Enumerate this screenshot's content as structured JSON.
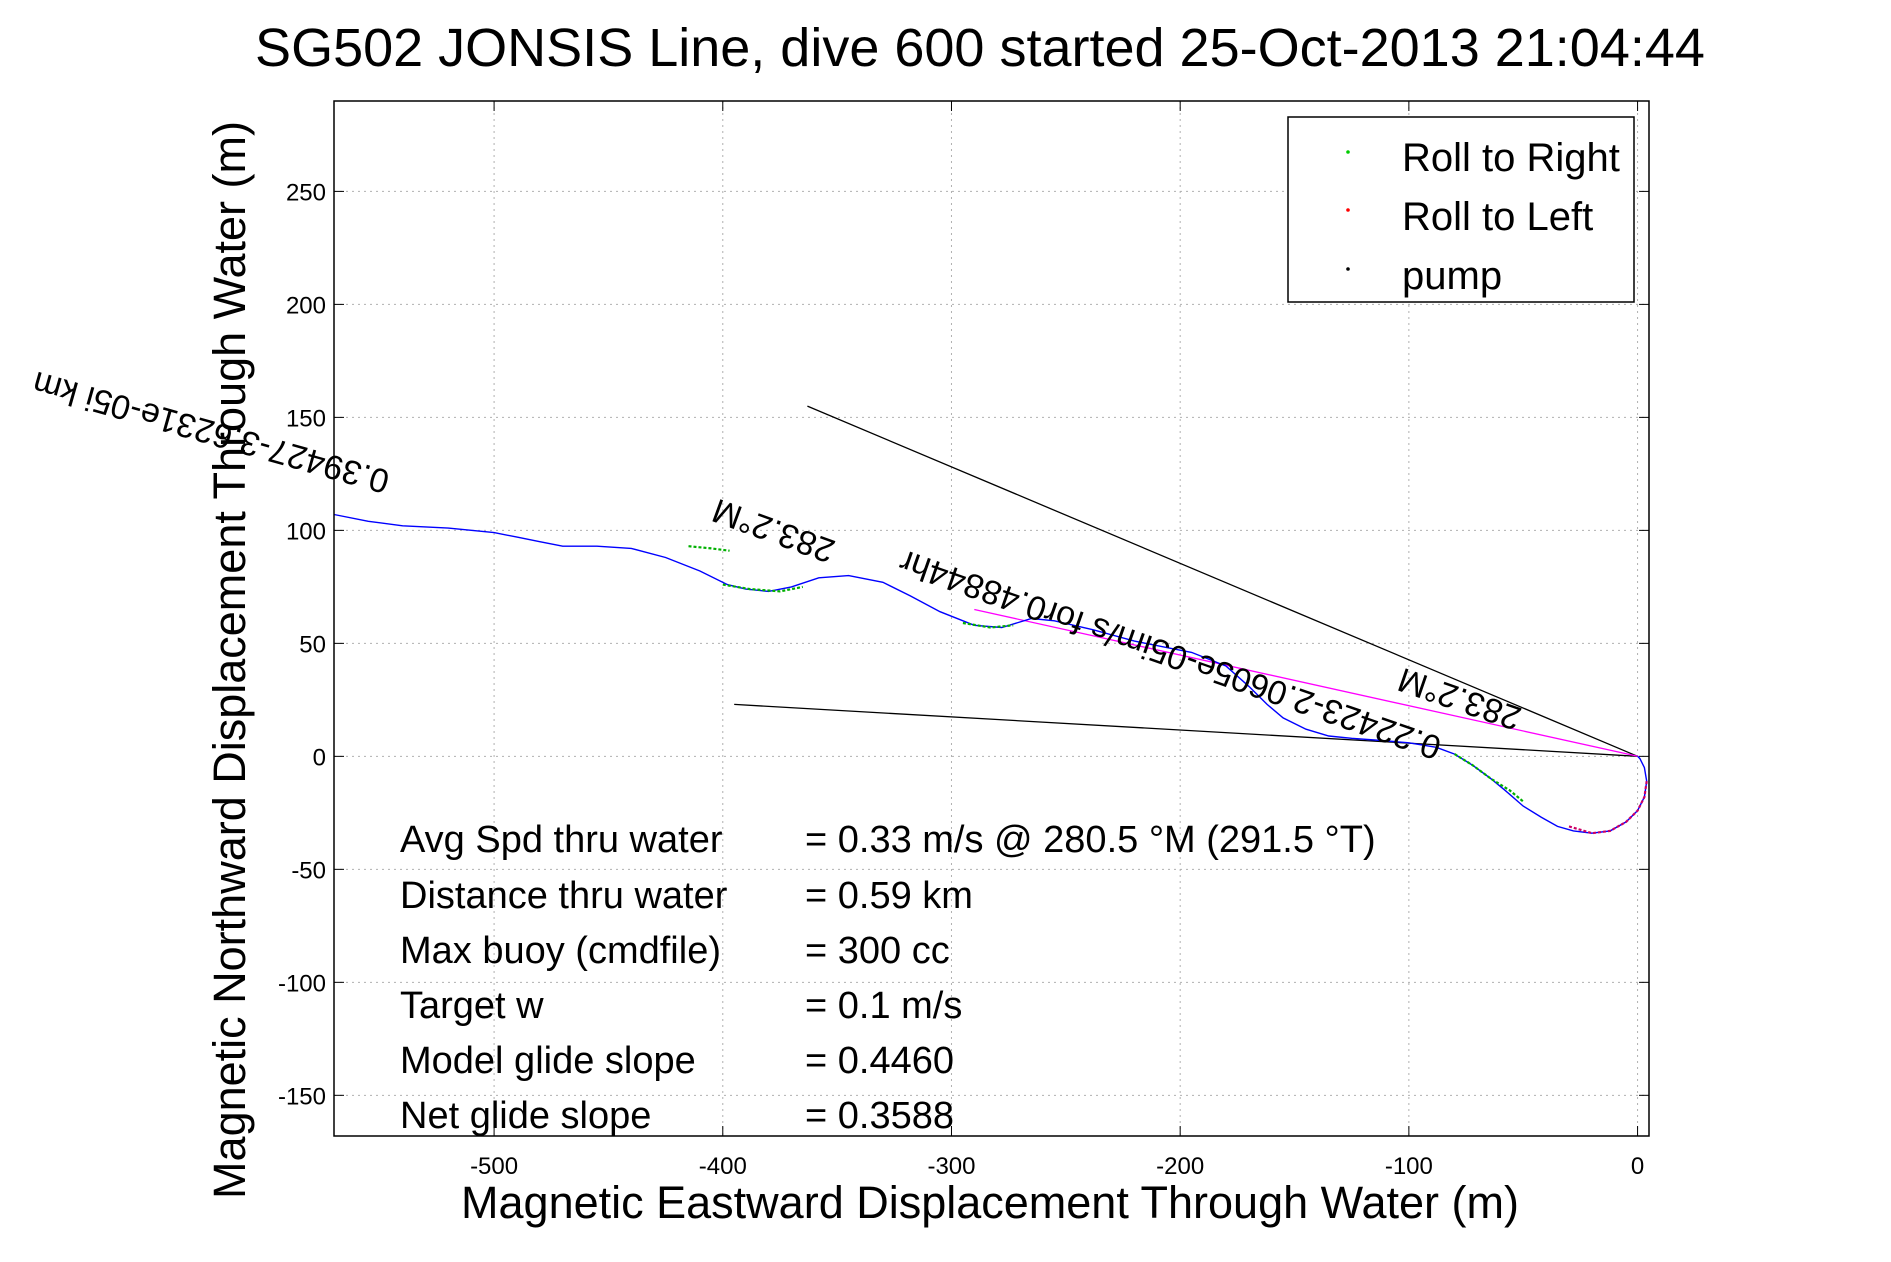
{
  "chart_data": {
    "type": "line",
    "title": "SG502 JONSIS Line, dive 600 started 25-Oct-2013 21:04:44",
    "xlabel": "Magnetic Eastward Displacement Through Water (m)",
    "ylabel": "Magnetic Northward Displacement Through Water (m)",
    "xlim": [
      -570,
      5
    ],
    "ylim": [
      -168,
      290
    ],
    "xticks": [
      -500,
      -400,
      -300,
      -200,
      -100,
      0
    ],
    "yticks": [
      -150,
      -100,
      -50,
      0,
      50,
      100,
      150,
      200,
      250
    ],
    "xtick_labels": [
      "-500",
      "-400",
      "-300",
      "-200",
      "-100",
      "0"
    ],
    "ytick_labels": [
      "-150",
      "-100",
      "-50",
      "0",
      "50",
      "100",
      "150",
      "200",
      "250"
    ],
    "grid": true,
    "legend_position": "top-right",
    "legend": [
      {
        "label": "Roll to Right",
        "color": "#00cc00"
      },
      {
        "label": "Roll to Left",
        "color": "#ff0000"
      },
      {
        "label": "pump",
        "color": "#000000"
      }
    ],
    "track": {
      "color": "#0000ff",
      "points": [
        [
          -570,
          107
        ],
        [
          -555,
          104
        ],
        [
          -540,
          102
        ],
        [
          -520,
          101
        ],
        [
          -500,
          99
        ],
        [
          -490,
          97
        ],
        [
          -480,
          95
        ],
        [
          -470,
          93
        ],
        [
          -455,
          93
        ],
        [
          -440,
          92
        ],
        [
          -425,
          88
        ],
        [
          -410,
          82
        ],
        [
          -398,
          76
        ],
        [
          -390,
          74
        ],
        [
          -380,
          73
        ],
        [
          -370,
          75
        ],
        [
          -358,
          79
        ],
        [
          -345,
          80
        ],
        [
          -330,
          77
        ],
        [
          -318,
          71
        ],
        [
          -305,
          64
        ],
        [
          -290,
          58
        ],
        [
          -278,
          57
        ],
        [
          -265,
          61
        ],
        [
          -255,
          60
        ],
        [
          -238,
          56
        ],
        [
          -220,
          51
        ],
        [
          -205,
          48
        ],
        [
          -195,
          46
        ],
        [
          -180,
          40
        ],
        [
          -170,
          31
        ],
        [
          -162,
          23
        ],
        [
          -155,
          17
        ],
        [
          -145,
          12
        ],
        [
          -135,
          9
        ],
        [
          -125,
          8
        ],
        [
          -112,
          7
        ],
        [
          -100,
          6
        ],
        [
          -88,
          4
        ],
        [
          -80,
          1
        ],
        [
          -72,
          -4
        ],
        [
          -64,
          -10
        ],
        [
          -58,
          -15
        ],
        [
          -50,
          -22
        ],
        [
          -42,
          -27
        ],
        [
          -35,
          -31
        ],
        [
          -28,
          -33
        ],
        [
          -20,
          -34
        ],
        [
          -12,
          -33
        ],
        [
          -5,
          -29
        ],
        [
          0,
          -24
        ],
        [
          3,
          -18
        ],
        [
          4,
          -11
        ],
        [
          3,
          -5
        ],
        [
          1,
          -1
        ],
        [
          0,
          0
        ]
      ]
    },
    "roll_right_segments": [
      [
        [
          -415,
          93
        ],
        [
          -405,
          92
        ],
        [
          -397,
          91
        ]
      ],
      [
        [
          -400,
          76
        ],
        [
          -388,
          74
        ],
        [
          -375,
          73
        ],
        [
          -365,
          75
        ]
      ],
      [
        [
          -295,
          59
        ],
        [
          -283,
          57
        ],
        [
          -273,
          58
        ]
      ],
      [
        [
          -80,
          1
        ],
        [
          -72,
          -4
        ],
        [
          -64,
          -10
        ],
        [
          -56,
          -15
        ],
        [
          -50,
          -20
        ]
      ]
    ],
    "roll_left_segments": [
      [
        [
          -30,
          -31
        ],
        [
          -20,
          -34
        ],
        [
          -12,
          -33
        ],
        [
          -5,
          -29
        ],
        [
          0,
          -24
        ],
        [
          3,
          -18
        ],
        [
          4,
          -11
        ]
      ]
    ],
    "lines": [
      {
        "name": "wind-line-1",
        "color": "#000000",
        "points": [
          [
            -363,
            155
          ],
          [
            0,
            0
          ]
        ]
      },
      {
        "name": "wind-line-2",
        "color": "#000000",
        "points": [
          [
            -395,
            23
          ],
          [
            0,
            0
          ]
        ]
      },
      {
        "name": "heading-line",
        "color": "#ff00ff",
        "points": [
          [
            -290,
            65
          ],
          [
            0,
            0
          ]
        ]
      }
    ],
    "annotations": [
      {
        "text": "0.39427-3.6231e-05i km",
        "x": -545,
        "y": 126,
        "rotation": 195.8
      },
      {
        "text": "0.22423-2.0605e-05im/s for0.48844hr",
        "x": -85,
        "y": 8,
        "rotation": 199.3
      },
      {
        "text": "283.2°M",
        "x": -350,
        "y": 95,
        "rotation": 200
      },
      {
        "text": "283.2°M",
        "x": -50,
        "y": 21,
        "rotation": 199
      }
    ],
    "stats": [
      {
        "label": "Avg Spd thru water",
        "value": "=  0.33 m/s @ 280.5 °M (291.5 °T)"
      },
      {
        "label": "Distance thru water",
        "value": "=  0.59 km"
      },
      {
        "label": "Max buoy (cmdfile)",
        "value": "= 300 cc"
      },
      {
        "label": "Target w",
        "value": "= 0.1 m/s"
      },
      {
        "label": "Model glide slope",
        "value": "= 0.4460"
      },
      {
        "label": "Net glide slope",
        "value": "= 0.3588"
      }
    ]
  }
}
